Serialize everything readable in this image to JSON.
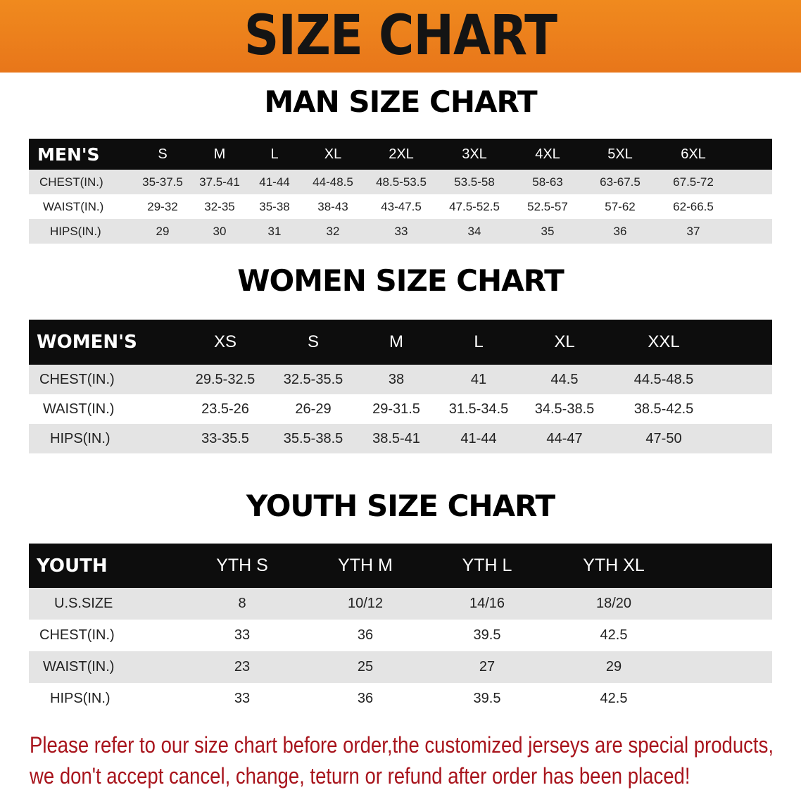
{
  "banner_title": "SIZE CHART",
  "men": {
    "title": "MAN SIZE CHART",
    "header": [
      "MEN'S",
      "S",
      "M",
      "L",
      "XL",
      "2XL",
      "3XL",
      "4XL",
      "5XL",
      "6XL"
    ],
    "rows": [
      [
        "CHEST(IN.)",
        "35-37.5",
        "37.5-41",
        "41-44",
        "44-48.5",
        "48.5-53.5",
        "53.5-58",
        "58-63",
        "63-67.5",
        "67.5-72"
      ],
      [
        "WAIST(IN.)",
        "29-32",
        "32-35",
        "35-38",
        "38-43",
        "43-47.5",
        "47.5-52.5",
        "52.5-57",
        "57-62",
        "62-66.5"
      ],
      [
        "HIPS(IN.)",
        "29",
        "30",
        "31",
        "32",
        "33",
        "34",
        "35",
        "36",
        "37"
      ]
    ]
  },
  "women": {
    "title": "WOMEN SIZE CHART",
    "header": [
      "WOMEN'S",
      "XS",
      "S",
      "M",
      "L",
      "XL",
      "XXL"
    ],
    "rows": [
      [
        "CHEST(IN.)",
        "29.5-32.5",
        "32.5-35.5",
        "38",
        "41",
        "44.5",
        "44.5-48.5"
      ],
      [
        "WAIST(IN.)",
        "23.5-26",
        "26-29",
        "29-31.5",
        "31.5-34.5",
        "34.5-38.5",
        "38.5-42.5"
      ],
      [
        "HIPS(IN.)",
        "33-35.5",
        "35.5-38.5",
        "38.5-41",
        "41-44",
        "44-47",
        "47-50"
      ]
    ]
  },
  "youth": {
    "title": "YOUTH SIZE CHART",
    "header": [
      "YOUTH",
      "YTH S",
      "YTH M",
      "YTH L",
      "YTH XL"
    ],
    "rows": [
      [
        "U.S.SIZE",
        "8",
        "10/12",
        "14/16",
        "18/20"
      ],
      [
        "CHEST(IN.)",
        "33",
        "36",
        "39.5",
        "42.5"
      ],
      [
        "WAIST(IN.)",
        "23",
        "25",
        "27",
        "29"
      ],
      [
        "HIPS(IN.)",
        "33",
        "36",
        "39.5",
        "42.5"
      ]
    ]
  },
  "note_line1": "Please refer to our size chart before order,the customized jerseys are special products,",
  "note_line2": "we don't accept cancel, change, teturn or refund after order has been placed!",
  "colors": {
    "banner": "#ee8420",
    "header_bg": "#0d0d0d",
    "row_gray": "#e4e4e4",
    "note": "#a8141c"
  }
}
